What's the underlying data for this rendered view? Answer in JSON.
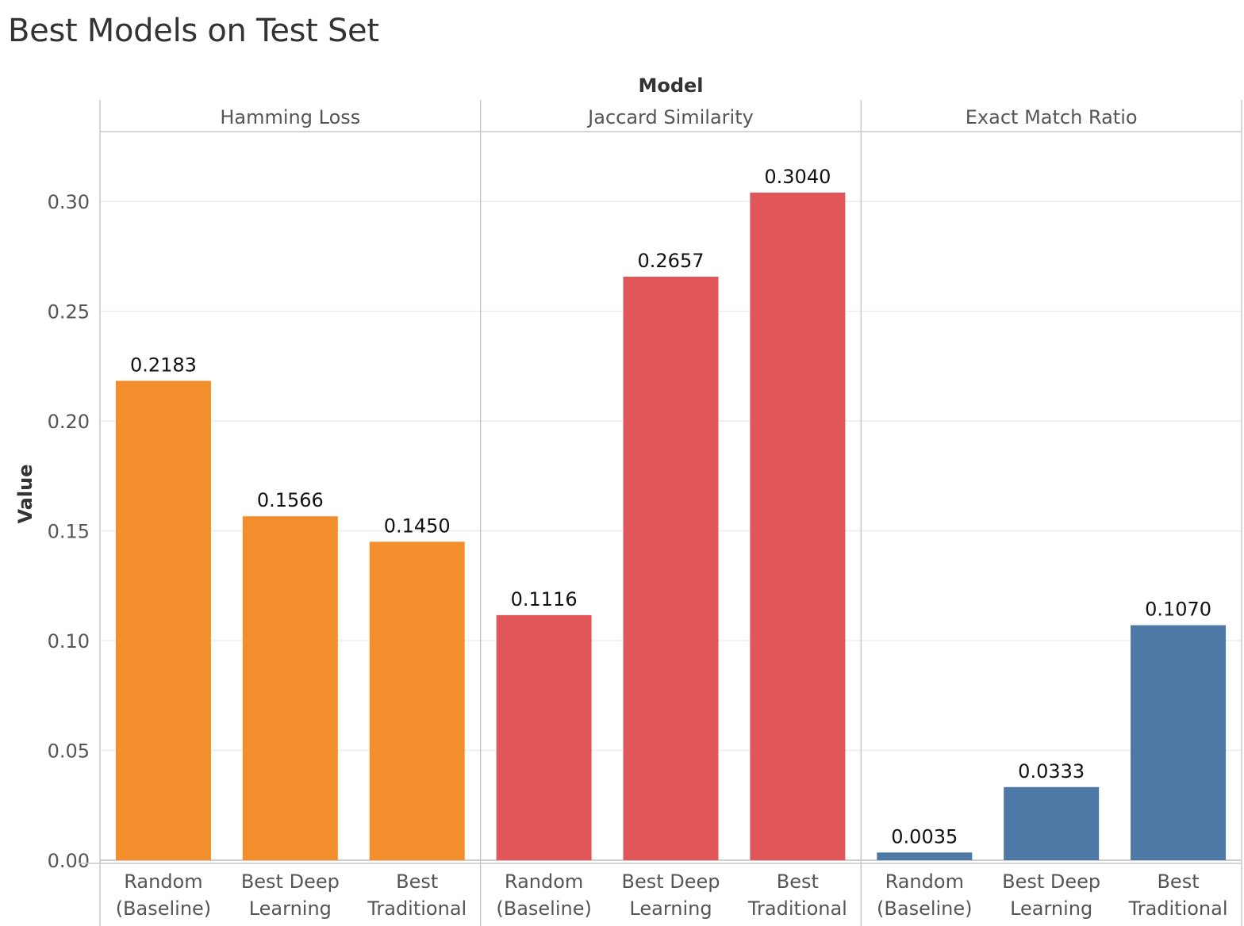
{
  "title": "Best Models on Test Set",
  "chart_data": {
    "type": "bar",
    "column_header": "Model",
    "ylabel": "Value",
    "ylim": [
      0,
      0.33
    ],
    "yticks": [
      "0.00",
      "0.05",
      "0.10",
      "0.15",
      "0.20",
      "0.25",
      "0.30"
    ],
    "grid": true,
    "panels": [
      {
        "name": "Hamming Loss",
        "color": "#f28e2b",
        "categories": [
          [
            "Random",
            "(Baseline)"
          ],
          [
            "Best Deep",
            "Learning"
          ],
          [
            "Best",
            "Traditional"
          ]
        ],
        "values": [
          0.2183,
          0.1566,
          0.145
        ],
        "labels": [
          "0.2183",
          "0.1566",
          "0.1450"
        ]
      },
      {
        "name": "Jaccard Similarity",
        "color": "#e15759",
        "categories": [
          [
            "Random",
            "(Baseline)"
          ],
          [
            "Best Deep",
            "Learning"
          ],
          [
            "Best",
            "Traditional"
          ]
        ],
        "values": [
          0.1116,
          0.2657,
          0.304
        ],
        "labels": [
          "0.1116",
          "0.2657",
          "0.3040"
        ]
      },
      {
        "name": "Exact Match Ratio",
        "color": "#4e79a7",
        "categories": [
          [
            "Random",
            "(Baseline)"
          ],
          [
            "Best Deep",
            "Learning"
          ],
          [
            "Best",
            "Traditional"
          ]
        ],
        "values": [
          0.0035,
          0.0333,
          0.107
        ],
        "labels": [
          "0.0035",
          "0.0333",
          "0.1070"
        ]
      }
    ]
  }
}
